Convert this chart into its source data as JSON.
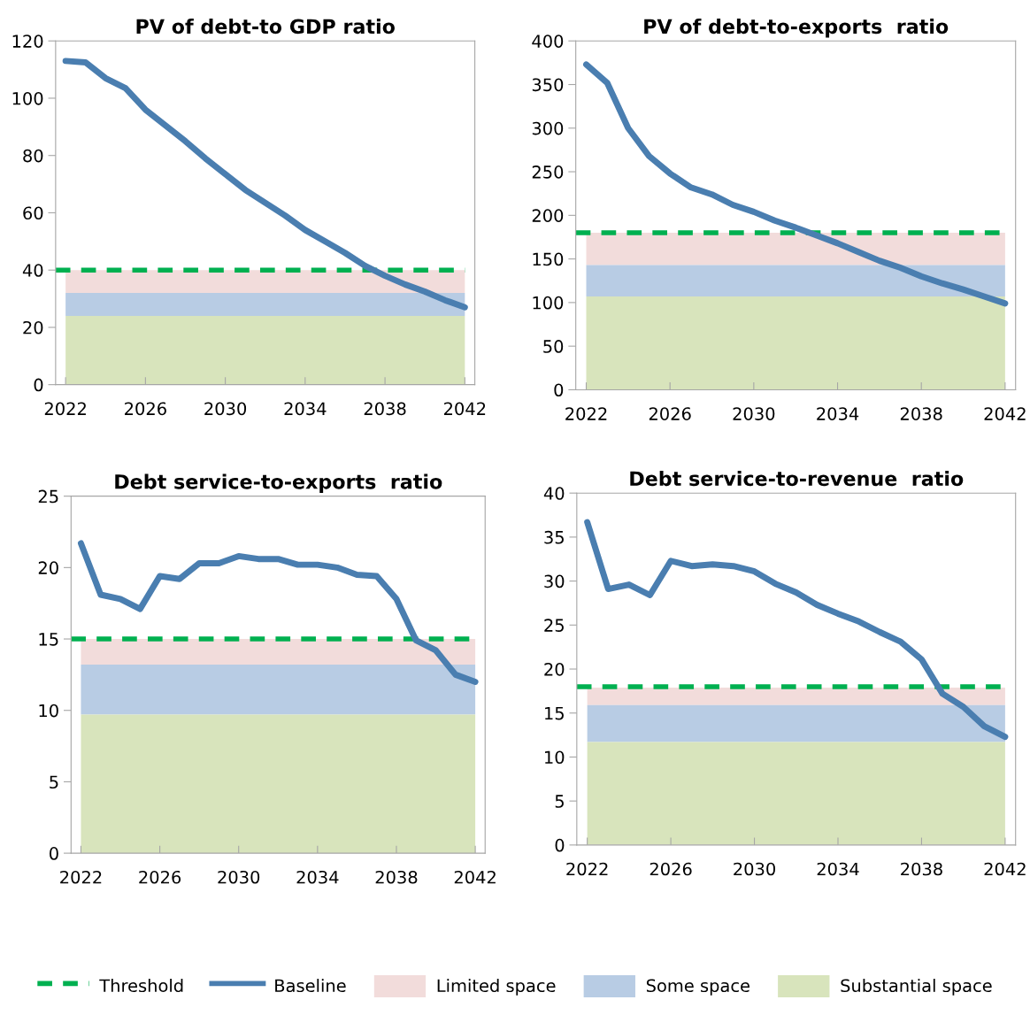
{
  "chart_data": [
    {
      "type": "line",
      "title": "PV of debt-to GDP ratio",
      "x": [
        2022,
        2023,
        2024,
        2025,
        2026,
        2027,
        2028,
        2029,
        2030,
        2031,
        2032,
        2033,
        2034,
        2035,
        2036,
        2037,
        2038,
        2039,
        2040,
        2041,
        2042
      ],
      "series": [
        {
          "name": "Baseline",
          "color": "#4a7eb0",
          "values": [
            113,
            112.5,
            107,
            103.5,
            96,
            90.5,
            85,
            79,
            73.5,
            68,
            63.5,
            59,
            54,
            50,
            46,
            41.5,
            38,
            35,
            32.5,
            29.5,
            27
          ]
        }
      ],
      "ref_lines": [
        {
          "axis": "y",
          "value": 40,
          "label": "Threshold",
          "color": "#00b050",
          "line_style": "dashed"
        }
      ],
      "bands": [
        {
          "axis": "y",
          "from": 32,
          "to": 40,
          "label": "Limited space",
          "color": "#f2dcdb"
        },
        {
          "axis": "y",
          "from": 24,
          "to": 32,
          "label": "Some space",
          "color": "#b8cce4"
        },
        {
          "axis": "y",
          "from": 0,
          "to": 24,
          "label": "Substantial space",
          "color": "#d8e4bc"
        }
      ],
      "xlim": [
        2021.5,
        2042.5
      ],
      "xticks": [
        2022,
        2026,
        2030,
        2034,
        2038,
        2042
      ],
      "ylim": [
        0,
        120
      ],
      "yticks": [
        0,
        20,
        40,
        60,
        80,
        100,
        120
      ],
      "grid": false,
      "legend": "bottom",
      "line_style": "solid",
      "marker": "none"
    },
    {
      "type": "line",
      "title": "PV of debt-to-exports  ratio",
      "x": [
        2022,
        2023,
        2024,
        2025,
        2026,
        2027,
        2028,
        2029,
        2030,
        2031,
        2032,
        2033,
        2034,
        2035,
        2036,
        2037,
        2038,
        2039,
        2040,
        2041,
        2042
      ],
      "series": [
        {
          "color": "#4a7eb0",
          "values": [
            373,
            352,
            300,
            268,
            248,
            232,
            224,
            212,
            204,
            194,
            186,
            177,
            168,
            158,
            148,
            140,
            130,
            122,
            115,
            107,
            99
          ]
        }
      ],
      "ref_lines": [
        {
          "axis": "y",
          "value": 180,
          "color": "#00b050",
          "line_style": "dashed"
        }
      ],
      "bands": [
        {
          "axis": "y",
          "from": 143,
          "to": 180,
          "color": "#f2dcdb"
        },
        {
          "axis": "y",
          "from": 107,
          "to": 143,
          "color": "#b8cce4"
        },
        {
          "axis": "y",
          "from": 0,
          "to": 107,
          "color": "#d8e4bc"
        }
      ],
      "xlim": [
        2021.5,
        2042.5
      ],
      "xticks": [
        2022,
        2026,
        2030,
        2034,
        2038,
        2042
      ],
      "ylim": [
        0,
        400
      ],
      "yticks": [
        0,
        50,
        100,
        150,
        200,
        250,
        300,
        350,
        400
      ],
      "grid": false,
      "line_style": "solid",
      "marker": "none"
    },
    {
      "type": "line",
      "title": "Debt service-to-exports  ratio",
      "x": [
        2022,
        2023,
        2024,
        2025,
        2026,
        2027,
        2028,
        2029,
        2030,
        2031,
        2032,
        2033,
        2034,
        2035,
        2036,
        2037,
        2038,
        2039,
        2040,
        2041,
        2042
      ],
      "series": [
        {
          "color": "#4a7eb0",
          "values": [
            21.7,
            18.1,
            17.8,
            17.1,
            19.4,
            19.2,
            20.3,
            20.3,
            20.8,
            20.6,
            20.6,
            20.2,
            20.2,
            20.0,
            19.5,
            19.4,
            17.8,
            14.9,
            14.2,
            12.5,
            12.0
          ]
        }
      ],
      "ref_lines": [
        {
          "axis": "y",
          "value": 15,
          "color": "#00b050",
          "line_style": "dashed"
        }
      ],
      "bands": [
        {
          "axis": "y",
          "from": 13.2,
          "to": 15,
          "color": "#f2dcdb"
        },
        {
          "axis": "y",
          "from": 9.7,
          "to": 13.2,
          "color": "#b8cce4"
        },
        {
          "axis": "y",
          "from": 0,
          "to": 9.7,
          "color": "#d8e4bc"
        }
      ],
      "xlim": [
        2021.5,
        2042.5
      ],
      "xticks": [
        2022,
        2026,
        2030,
        2034,
        2038,
        2042
      ],
      "ylim": [
        0,
        25
      ],
      "yticks": [
        0,
        5,
        10,
        15,
        20,
        25
      ],
      "grid": false,
      "line_style": "solid",
      "marker": "none"
    },
    {
      "type": "line",
      "title": "Debt service-to-revenue  ratio",
      "x": [
        2022,
        2023,
        2024,
        2025,
        2026,
        2027,
        2028,
        2029,
        2030,
        2031,
        2032,
        2033,
        2034,
        2035,
        2036,
        2037,
        2038,
        2039,
        2040,
        2041,
        2042
      ],
      "series": [
        {
          "color": "#4a7eb0",
          "values": [
            36.7,
            29.1,
            29.6,
            28.4,
            32.3,
            31.7,
            31.9,
            31.7,
            31.1,
            29.7,
            28.7,
            27.3,
            26.3,
            25.4,
            24.2,
            23.1,
            21.1,
            17.2,
            15.7,
            13.5,
            12.3
          ]
        }
      ],
      "ref_lines": [
        {
          "axis": "y",
          "value": 18,
          "color": "#00b050",
          "line_style": "dashed"
        }
      ],
      "bands": [
        {
          "axis": "y",
          "from": 15.9,
          "to": 17.9,
          "color": "#f2dcdb"
        },
        {
          "axis": "y",
          "from": 11.7,
          "to": 15.9,
          "color": "#b8cce4"
        },
        {
          "axis": "y",
          "from": 0,
          "to": 11.7,
          "color": "#d8e4bc"
        }
      ],
      "xlim": [
        2021.5,
        2042.5
      ],
      "xticks": [
        2022,
        2026,
        2030,
        2034,
        2038,
        2042
      ],
      "ylim": [
        0,
        40
      ],
      "yticks": [
        0,
        5,
        10,
        15,
        20,
        25,
        30,
        35,
        40
      ],
      "grid": false,
      "line_style": "solid",
      "marker": "none"
    }
  ]
}
